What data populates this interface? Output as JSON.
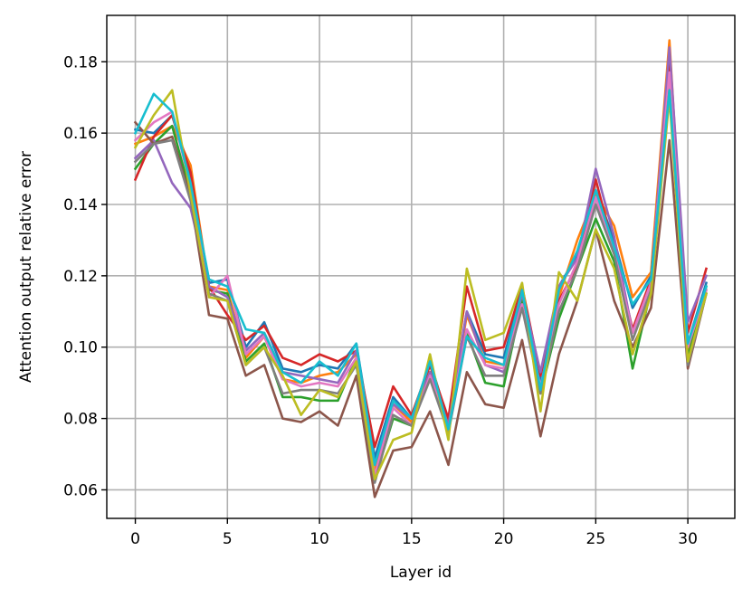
{
  "chart_data": {
    "type": "line",
    "title": "",
    "xlabel": "Layer id",
    "ylabel": "Attention output relative error",
    "xlim": [
      -1.55,
      32.55
    ],
    "ylim": [
      0.052,
      0.193
    ],
    "xticks": [
      0,
      5,
      10,
      15,
      20,
      25,
      30
    ],
    "xtick_labels": [
      "0",
      "5",
      "10",
      "15",
      "20",
      "25",
      "30"
    ],
    "yticks": [
      0.06,
      0.08,
      0.1,
      0.12,
      0.14,
      0.16,
      0.18
    ],
    "ytick_labels": [
      "0.06",
      "0.08",
      "0.10",
      "0.12",
      "0.14",
      "0.16",
      "0.18"
    ],
    "grid": true,
    "legend": "none",
    "x": [
      0,
      1,
      2,
      3,
      4,
      5,
      6,
      7,
      8,
      9,
      10,
      11,
      12,
      13,
      14,
      15,
      16,
      17,
      18,
      19,
      20,
      21,
      22,
      23,
      24,
      25,
      26,
      27,
      28,
      29,
      30,
      31
    ],
    "series": [
      {
        "color": "#1f77b4",
        "values": [
          0.161,
          0.16,
          0.165,
          0.147,
          0.118,
          0.119,
          0.1,
          0.107,
          0.094,
          0.093,
          0.095,
          0.094,
          0.101,
          0.069,
          0.086,
          0.08,
          0.096,
          0.079,
          0.11,
          0.098,
          0.097,
          0.116,
          0.09,
          0.117,
          0.126,
          0.144,
          0.13,
          0.111,
          0.12,
          0.178,
          0.101,
          0.118
        ]
      },
      {
        "color": "#ff7f0e",
        "values": [
          0.157,
          0.159,
          0.162,
          0.151,
          0.117,
          0.116,
          0.097,
          0.103,
          0.091,
          0.09,
          0.092,
          0.093,
          0.098,
          0.066,
          0.084,
          0.079,
          0.095,
          0.078,
          0.109,
          0.096,
          0.095,
          0.114,
          0.088,
          0.114,
          0.13,
          0.143,
          0.134,
          0.114,
          0.121,
          0.186,
          0.099,
          0.116
        ]
      },
      {
        "color": "#2ca02c",
        "values": [
          0.15,
          0.157,
          0.162,
          0.143,
          0.116,
          0.115,
          0.096,
          0.101,
          0.086,
          0.086,
          0.085,
          0.085,
          0.097,
          0.063,
          0.08,
          0.078,
          0.093,
          0.077,
          0.104,
          0.09,
          0.089,
          0.113,
          0.087,
          0.108,
          0.122,
          0.136,
          0.124,
          0.094,
          0.116,
          0.175,
          0.097,
          0.117
        ]
      },
      {
        "color": "#d62728",
        "values": [
          0.147,
          0.159,
          0.165,
          0.149,
          0.117,
          0.109,
          0.102,
          0.106,
          0.097,
          0.095,
          0.098,
          0.096,
          0.099,
          0.072,
          0.089,
          0.081,
          0.095,
          0.08,
          0.117,
          0.099,
          0.1,
          0.117,
          0.092,
          0.113,
          0.123,
          0.147,
          0.127,
          0.105,
          0.119,
          0.181,
          0.104,
          0.122
        ]
      },
      {
        "color": "#9467bd",
        "values": [
          0.153,
          0.158,
          0.146,
          0.139,
          0.117,
          0.114,
          0.099,
          0.104,
          0.093,
          0.092,
          0.091,
          0.09,
          0.099,
          0.067,
          0.084,
          0.08,
          0.093,
          0.078,
          0.11,
          0.095,
          0.093,
          0.115,
          0.093,
          0.117,
          0.125,
          0.15,
          0.131,
          0.104,
          0.118,
          0.184,
          0.107,
          0.12
        ]
      },
      {
        "color": "#8c564b",
        "values": [
          0.163,
          0.157,
          0.159,
          0.142,
          0.109,
          0.108,
          0.092,
          0.095,
          0.08,
          0.079,
          0.082,
          0.078,
          0.092,
          0.058,
          0.071,
          0.072,
          0.082,
          0.067,
          0.093,
          0.084,
          0.083,
          0.102,
          0.075,
          0.098,
          0.113,
          0.133,
          0.113,
          0.1,
          0.111,
          0.158,
          0.094,
          0.115
        ]
      },
      {
        "color": "#e377c2",
        "values": [
          0.158,
          0.163,
          0.166,
          0.145,
          0.114,
          0.12,
          0.098,
          0.103,
          0.091,
          0.089,
          0.09,
          0.089,
          0.097,
          0.064,
          0.083,
          0.078,
          0.092,
          0.077,
          0.105,
          0.095,
          0.094,
          0.112,
          0.089,
          0.112,
          0.124,
          0.142,
          0.127,
          0.104,
          0.118,
          0.177,
          0.1,
          0.116
        ]
      },
      {
        "color": "#7f7f7f",
        "values": [
          0.152,
          0.157,
          0.158,
          0.141,
          0.115,
          0.113,
          0.095,
          0.1,
          0.087,
          0.088,
          0.088,
          0.087,
          0.095,
          0.062,
          0.081,
          0.078,
          0.091,
          0.076,
          0.103,
          0.092,
          0.092,
          0.111,
          0.087,
          0.11,
          0.122,
          0.14,
          0.126,
          0.102,
          0.116,
          0.172,
          0.095,
          0.115
        ]
      },
      {
        "color": "#bcbd22",
        "values": [
          0.156,
          0.165,
          0.172,
          0.143,
          0.114,
          0.113,
          0.095,
          0.1,
          0.092,
          0.081,
          0.088,
          0.086,
          0.096,
          0.063,
          0.074,
          0.076,
          0.098,
          0.074,
          0.122,
          0.102,
          0.104,
          0.118,
          0.082,
          0.121,
          0.113,
          0.133,
          0.122,
          0.098,
          0.115,
          0.17,
          0.096,
          0.115
        ]
      },
      {
        "color": "#17becf",
        "values": [
          0.16,
          0.171,
          0.166,
          0.146,
          0.119,
          0.117,
          0.105,
          0.104,
          0.093,
          0.09,
          0.096,
          0.092,
          0.101,
          0.067,
          0.085,
          0.08,
          0.096,
          0.077,
          0.103,
          0.097,
          0.095,
          0.116,
          0.088,
          0.116,
          0.127,
          0.144,
          0.128,
          0.112,
          0.119,
          0.172,
          0.101,
          0.117
        ]
      }
    ]
  }
}
